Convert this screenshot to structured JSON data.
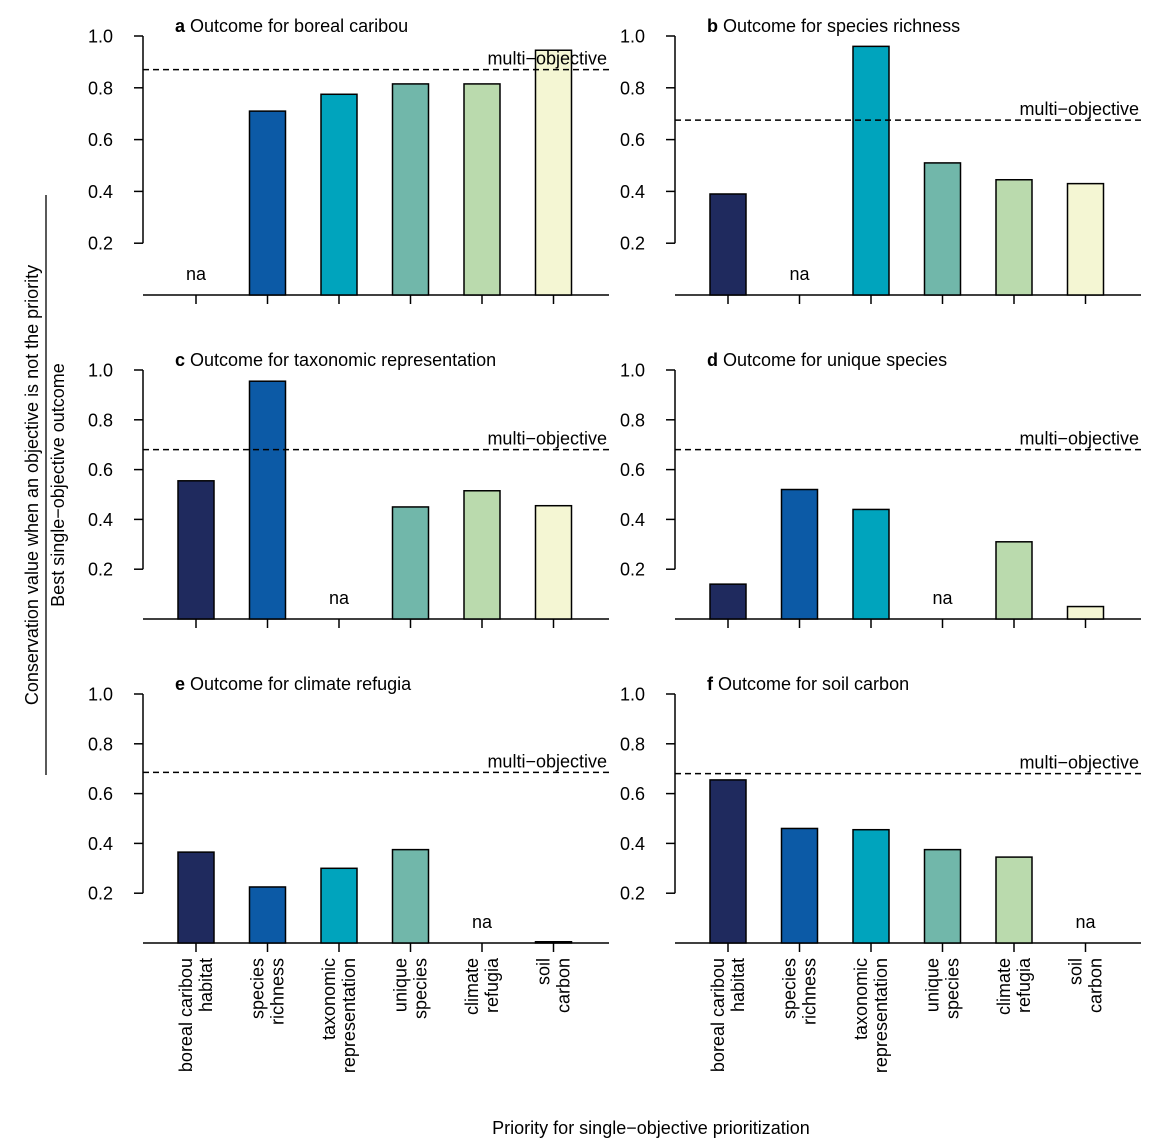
{
  "figure": {
    "ylabel_top": "Conservation value when an objective is not the priority",
    "ylabel_bottom": "Best single−objective outcome",
    "xlabel": "Priority for single−objective prioritization",
    "na_label": "na",
    "ref_label": "multi−objective"
  },
  "colors": {
    "boreal_caribou_habitat": "#1f2a5e",
    "species_richness": "#0c5aa6",
    "taxonomic_representation": "#00a4bd",
    "unique_species": "#71b7aa",
    "climate_refugia": "#badaad",
    "soil_carbon": "#f4f6d3"
  },
  "chart_data": [
    {
      "type": "bar",
      "panel": "a",
      "title": "Outcome for boreal caribou",
      "categories": [
        [
          "boreal caribou",
          "habitat"
        ],
        [
          "species",
          "richness"
        ],
        [
          "taxonomic",
          "representation"
        ],
        [
          "unique",
          "species"
        ],
        [
          "climate",
          "refugia"
        ],
        [
          "soil",
          "carbon"
        ]
      ],
      "values": [
        null,
        0.71,
        0.775,
        0.815,
        0.815,
        0.945
      ],
      "multi_objective": 0.87,
      "yticks": [
        0.2,
        0.4,
        0.6,
        0.8,
        1.0
      ],
      "ylim": [
        0.0,
        1.05
      ]
    },
    {
      "type": "bar",
      "panel": "b",
      "title": "Outcome for species richness",
      "categories": [
        [
          "boreal caribou",
          "habitat"
        ],
        [
          "species",
          "richness"
        ],
        [
          "taxonomic",
          "representation"
        ],
        [
          "unique",
          "species"
        ],
        [
          "climate",
          "refugia"
        ],
        [
          "soil",
          "carbon"
        ]
      ],
      "values": [
        0.39,
        null,
        0.96,
        0.51,
        0.445,
        0.43
      ],
      "multi_objective": 0.675,
      "yticks": [
        0.2,
        0.4,
        0.6,
        0.8,
        1.0
      ],
      "ylim": [
        0.0,
        1.05
      ]
    },
    {
      "type": "bar",
      "panel": "c",
      "title": "Outcome for taxonomic representation",
      "categories": [
        [
          "boreal caribou",
          "habitat"
        ],
        [
          "species",
          "richness"
        ],
        [
          "taxonomic",
          "representation"
        ],
        [
          "unique",
          "species"
        ],
        [
          "climate",
          "refugia"
        ],
        [
          "soil",
          "carbon"
        ]
      ],
      "values": [
        0.555,
        0.955,
        null,
        0.45,
        0.515,
        0.455
      ],
      "multi_objective": 0.68,
      "yticks": [
        0.2,
        0.4,
        0.6,
        0.8,
        1.0
      ],
      "ylim": [
        0.0,
        1.05
      ]
    },
    {
      "type": "bar",
      "panel": "d",
      "title": "Outcome for unique species",
      "categories": [
        [
          "boreal caribou",
          "habitat"
        ],
        [
          "species",
          "richness"
        ],
        [
          "taxonomic",
          "representation"
        ],
        [
          "unique",
          "species"
        ],
        [
          "climate",
          "refugia"
        ],
        [
          "soil",
          "carbon"
        ]
      ],
      "values": [
        0.14,
        0.52,
        0.44,
        null,
        0.31,
        0.05
      ],
      "multi_objective": 0.68,
      "yticks": [
        0.2,
        0.4,
        0.6,
        0.8,
        1.0
      ],
      "ylim": [
        0.0,
        1.05
      ]
    },
    {
      "type": "bar",
      "panel": "e",
      "title": "Outcome for climate refugia",
      "categories": [
        [
          "boreal caribou",
          "habitat"
        ],
        [
          "species",
          "richness"
        ],
        [
          "taxonomic",
          "representation"
        ],
        [
          "unique",
          "species"
        ],
        [
          "climate",
          "refugia"
        ],
        [
          "soil",
          "carbon"
        ]
      ],
      "values": [
        0.365,
        0.225,
        0.3,
        0.375,
        null,
        0.005
      ],
      "multi_objective": 0.685,
      "yticks": [
        0.2,
        0.4,
        0.6,
        0.8,
        1.0
      ],
      "ylim": [
        0.0,
        1.05
      ]
    },
    {
      "type": "bar",
      "panel": "f",
      "title": "Outcome for soil carbon",
      "categories": [
        [
          "boreal caribou",
          "habitat"
        ],
        [
          "species",
          "richness"
        ],
        [
          "taxonomic",
          "representation"
        ],
        [
          "unique",
          "species"
        ],
        [
          "climate",
          "refugia"
        ],
        [
          "soil",
          "carbon"
        ]
      ],
      "values": [
        0.655,
        0.46,
        0.455,
        0.375,
        0.345,
        null
      ],
      "multi_objective": 0.68,
      "yticks": [
        0.2,
        0.4,
        0.6,
        0.8,
        1.0
      ],
      "ylim": [
        0.0,
        1.05
      ]
    }
  ]
}
